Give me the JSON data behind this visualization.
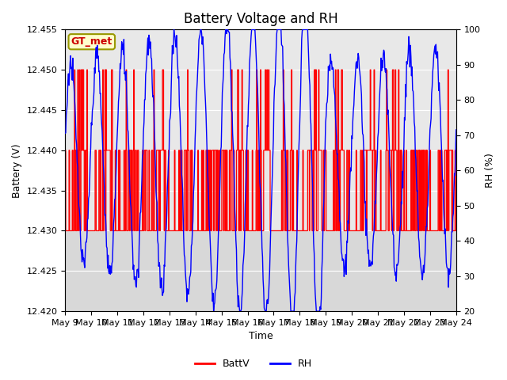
{
  "title": "Battery Voltage and RH",
  "xlabel": "Time",
  "ylabel_left": "Battery (V)",
  "ylabel_right": "RH (%)",
  "left_ylim": [
    12.42,
    12.455
  ],
  "right_ylim": [
    20,
    100
  ],
  "left_yticks": [
    12.42,
    12.425,
    12.43,
    12.435,
    12.44,
    12.445,
    12.45,
    12.455
  ],
  "right_yticks": [
    20,
    30,
    40,
    50,
    60,
    70,
    80,
    90,
    100
  ],
  "background_color": "#ffffff",
  "plot_bg_color": "#d8d8d8",
  "plot_inner_bg": "#e8e8e8",
  "station_label": "GT_met",
  "station_label_color": "#cc0000",
  "station_box_bg": "#ffffcc",
  "station_box_edge": "#999900",
  "batt_color": "#ff0000",
  "rh_color": "#0000ff",
  "title_fontsize": 12,
  "axis_fontsize": 9,
  "tick_fontsize": 8,
  "legend_fontsize": 9,
  "x_tick_labels": [
    "May 9",
    "May 10",
    "May 11",
    "May 12",
    "May 13",
    "May 14",
    "May 15",
    "May 16",
    "May 17",
    "May 18",
    "May 19",
    "May 20",
    "May 21",
    "May 22",
    "May 23",
    "May 24"
  ],
  "x_tick_positions": [
    0,
    1,
    2,
    3,
    4,
    5,
    6,
    7,
    8,
    9,
    10,
    11,
    12,
    13,
    14,
    15
  ]
}
